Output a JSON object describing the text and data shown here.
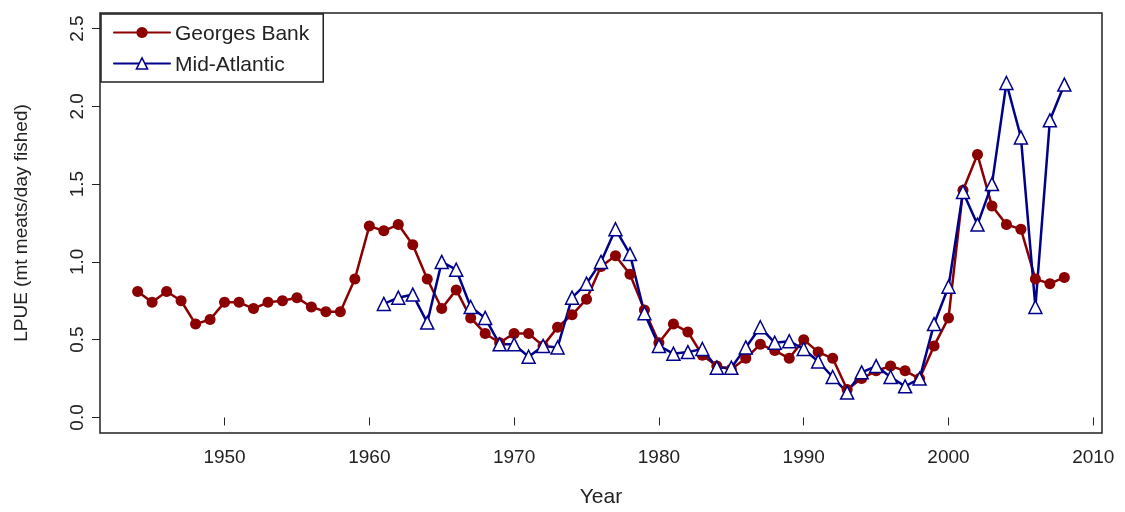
{
  "chart_data": {
    "type": "line",
    "xlabel": "Year",
    "ylabel": "LPUE (mt meats/day fished)",
    "xlim": [
      1941.4,
      2010.6
    ],
    "xticks": [
      1950,
      1960,
      1970,
      1980,
      1990,
      2000,
      2010
    ],
    "ylim": [
      -0.1,
      2.6
    ],
    "yticks": [
      {
        "value": 0,
        "label": "0.0"
      },
      0.5,
      {
        "value": 1,
        "label": "1.0"
      },
      1.5,
      {
        "value": 2,
        "label": "2.0"
      },
      2.5
    ],
    "grid": false,
    "legend": "top left",
    "line_style": "solid",
    "series": [
      {
        "name": "Georges Bank",
        "color": "#8b0000",
        "marker": "circle",
        "x": [
          1944,
          1945,
          1946,
          1947,
          1948,
          1949,
          1950,
          1951,
          1952,
          1953,
          1954,
          1955,
          1956,
          1957,
          1958,
          1959,
          1960,
          1961,
          1962,
          1963,
          1964,
          1965,
          1966,
          1967,
          1968,
          1969,
          1970,
          1971,
          1972,
          1973,
          1974,
          1975,
          1976,
          1977,
          1978,
          1979,
          1980,
          1981,
          1982,
          1983,
          1984,
          1985,
          1986,
          1987,
          1988,
          1989,
          1990,
          1991,
          1992,
          1993,
          1994,
          1995,
          1996,
          1997,
          1998,
          1999,
          2000,
          2001,
          2002,
          2003,
          2004,
          2005,
          2006,
          2007,
          2008
        ],
        "values": [
          0.81,
          0.74,
          0.81,
          0.75,
          0.6,
          0.63,
          0.74,
          0.74,
          0.7,
          0.74,
          0.75,
          0.77,
          0.71,
          0.68,
          0.68,
          0.89,
          1.23,
          1.2,
          1.24,
          1.11,
          0.89,
          0.7,
          0.82,
          0.64,
          0.54,
          0.48,
          0.54,
          0.54,
          0.46,
          0.58,
          0.66,
          0.76,
          0.97,
          1.04,
          0.92,
          0.69,
          0.48,
          0.6,
          0.55,
          0.4,
          0.33,
          0.31,
          0.38,
          0.47,
          0.43,
          0.38,
          0.5,
          0.42,
          0.38,
          0.18,
          0.25,
          0.3,
          0.33,
          0.3,
          0.25,
          0.46,
          0.64,
          1.46,
          1.69,
          1.36,
          1.24,
          1.21,
          0.89,
          0.86,
          0.9
        ]
      },
      {
        "name": "Mid-Atlantic",
        "color": "#00008b",
        "marker": "triangle",
        "x": [
          1961,
          1962,
          1963,
          1964,
          1965,
          1966,
          1967,
          1968,
          1969,
          1970,
          1971,
          1972,
          1973,
          1974,
          1975,
          1976,
          1977,
          1978,
          1979,
          1980,
          1981,
          1982,
          1983,
          1984,
          1985,
          1986,
          1987,
          1988,
          1989,
          1990,
          1991,
          1992,
          1993,
          1994,
          1995,
          1996,
          1997,
          1998,
          1999,
          2000,
          2001,
          2002,
          2003,
          2004,
          2005,
          2006,
          2007,
          2008
        ],
        "values": [
          0.73,
          0.77,
          0.79,
          0.61,
          1.0,
          0.95,
          0.71,
          0.64,
          0.47,
          0.47,
          0.39,
          0.46,
          0.45,
          0.77,
          0.86,
          1.0,
          1.21,
          1.05,
          0.67,
          0.46,
          0.41,
          0.42,
          0.44,
          0.32,
          0.32,
          0.45,
          0.58,
          0.48,
          0.49,
          0.44,
          0.36,
          0.26,
          0.16,
          0.29,
          0.33,
          0.26,
          0.2,
          0.25,
          0.6,
          0.84,
          1.45,
          1.24,
          1.5,
          2.15,
          1.8,
          0.71,
          1.91,
          2.14
        ]
      }
    ]
  }
}
